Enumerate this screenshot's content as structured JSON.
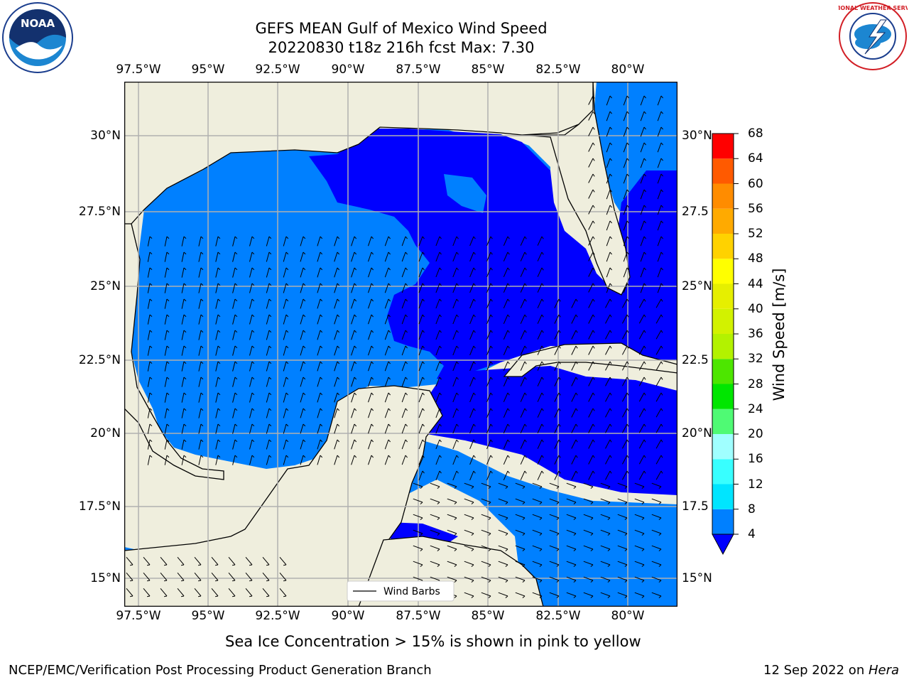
{
  "header": {
    "title_line1": "GEFS MEAN Gulf of Mexico Wind Speed",
    "title_line2": "20220830 t18z 216h fcst   Max: 7.30"
  },
  "logos": {
    "left": {
      "name": "noaa-logo",
      "text": "NOAA",
      "ring_text": "NATIONAL OCEANIC AND ATMOSPHERIC ADMINISTRATION · U.S. DEPARTMENT OF COMMERCE"
    },
    "right": {
      "name": "nws-logo",
      "ring_text": "NATIONAL WEATHER SERVICE"
    }
  },
  "map": {
    "lon_ticks": [
      "97.5°W",
      "95°W",
      "92.5°W",
      "90°W",
      "87.5°W",
      "85°W",
      "82.5°W",
      "80°W"
    ],
    "lat_ticks_left": [
      "30°N",
      "27.5°N",
      "25°N",
      "22.5°N",
      "20°N",
      "17.5°N",
      "15°N"
    ],
    "lat_ticks_right": [
      "30°N",
      "27.5",
      "25°N",
      "22.5",
      "20°N",
      "17.5",
      "15°N"
    ],
    "legend_label": "Wind Barbs",
    "colors": {
      "land": "#efeedd",
      "light_blue": "#0080ff",
      "dark_blue": "#0000ff",
      "grid": "#b0b0b0"
    }
  },
  "colorbar": {
    "label": "Wind Speed [m/s]",
    "levels": [
      "4",
      "8",
      "12",
      "16",
      "20",
      "24",
      "28",
      "32",
      "36",
      "40",
      "44",
      "48",
      "52",
      "56",
      "60",
      "64",
      "68"
    ],
    "colors": [
      "#0080ff",
      "#00e5ff",
      "#38ffff",
      "#a0ffff",
      "#4ffa74",
      "#00e600",
      "#4de600",
      "#b3f200",
      "#d2f200",
      "#e6ef00",
      "#ffff00",
      "#ffd200",
      "#ffaa00",
      "#ff8c00",
      "#ff5a00",
      "#ff2d00",
      "#ff0000"
    ],
    "under_color": "#0000ff"
  },
  "annotation": "Sea Ice Concentration > 15% is shown in pink to yellow",
  "footer": {
    "left": "NCEP/EMC/Verification Post Processing Product Generation Branch",
    "right_date": "12 Sep 2022 on ",
    "right_machine": "Hera"
  }
}
